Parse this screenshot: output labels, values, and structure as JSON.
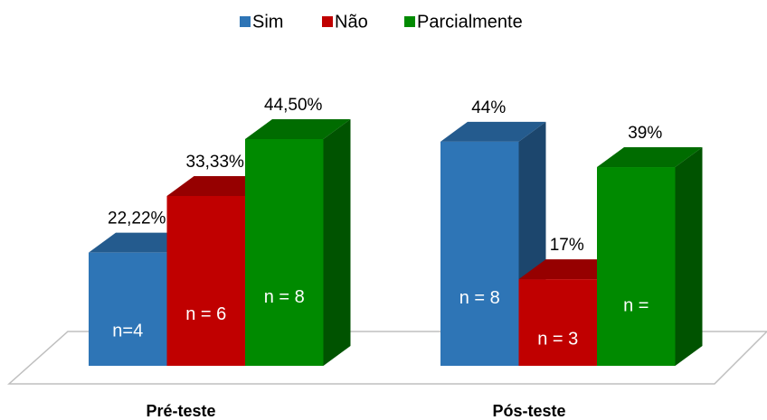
{
  "chart_data": {
    "type": "bar3d",
    "categories": [
      "Pré-teste",
      "Pós-teste"
    ],
    "series": [
      {
        "name": "Sim",
        "color": "#2e75b6",
        "values": [
          22.22,
          44
        ],
        "value_labels": [
          "22,22%",
          "44%"
        ],
        "n_labels": [
          "n=4",
          "n = 8"
        ]
      },
      {
        "name": "Não",
        "color": "#c00000",
        "values": [
          33.33,
          17
        ],
        "value_labels": [
          "33,33%",
          "17%"
        ],
        "n_labels": [
          "n = 6",
          "n = 3"
        ]
      },
      {
        "name": "Parcialmente",
        "color": "#008a00",
        "values": [
          44.5,
          39
        ],
        "value_labels": [
          "44,50%",
          "39%"
        ],
        "n_labels": [
          "n = 8",
          "n ="
        ]
      }
    ],
    "legend": "top"
  }
}
